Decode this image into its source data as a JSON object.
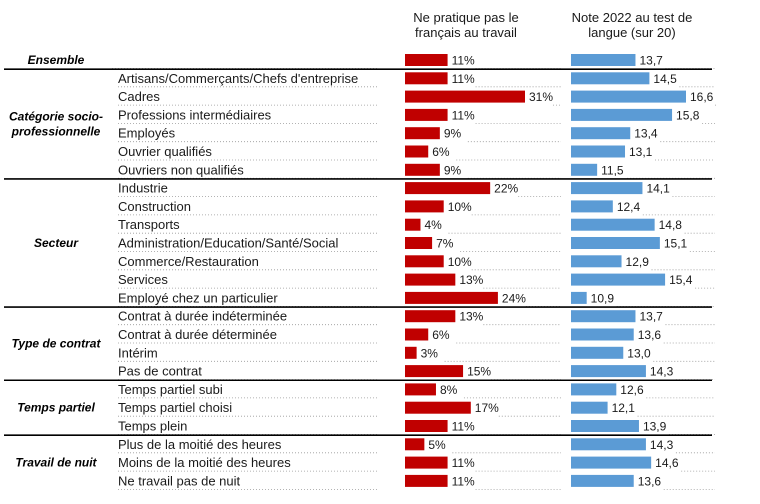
{
  "chart_data": {
    "type": "bar",
    "series": [
      {
        "name": "Ne pratique pas le français au travail",
        "unit": "%",
        "color": "#c00000",
        "max": 31
      },
      {
        "name": "Note 2022 au test de langue (sur 20)",
        "color": "#5b9bd5",
        "min": 10,
        "max": 16.6
      }
    ],
    "header_left": [
      "Ne pratique pas le",
      "français au travail"
    ],
    "header_right": [
      "Note 2022 au test de",
      "langue (sur 20)"
    ],
    "groups": [
      {
        "name": [
          "Ensemble"
        ],
        "rows": [
          {
            "label": "",
            "pct": 11,
            "pct_label": "11%",
            "score": 13.7,
            "score_label": "13,7"
          }
        ]
      },
      {
        "name": [
          "Catégorie socio-",
          "professionnelle"
        ],
        "rows": [
          {
            "label": "Artisans/Commerçants/Chefs d'entreprise",
            "pct": 11,
            "pct_label": "11%",
            "score": 14.5,
            "score_label": "14,5"
          },
          {
            "label": "Cadres",
            "pct": 31,
            "pct_label": "31%",
            "score": 16.6,
            "score_label": "16,6"
          },
          {
            "label": "Professions intermédiaires",
            "pct": 11,
            "pct_label": "11%",
            "score": 15.8,
            "score_label": "15,8"
          },
          {
            "label": "Employés",
            "pct": 9,
            "pct_label": "9%",
            "score": 13.4,
            "score_label": "13,4"
          },
          {
            "label": "Ouvrier qualifiés",
            "pct": 6,
            "pct_label": "6%",
            "score": 13.1,
            "score_label": "13,1"
          },
          {
            "label": "Ouvriers non qualifiés",
            "pct": 9,
            "pct_label": "9%",
            "score": 11.5,
            "score_label": "11,5"
          }
        ]
      },
      {
        "name": [
          "Secteur"
        ],
        "rows": [
          {
            "label": "Industrie",
            "pct": 22,
            "pct_label": "22%",
            "score": 14.1,
            "score_label": "14,1"
          },
          {
            "label": "Construction",
            "pct": 10,
            "pct_label": "10%",
            "score": 12.4,
            "score_label": "12,4"
          },
          {
            "label": "Transports",
            "pct": 4,
            "pct_label": "4%",
            "score": 14.8,
            "score_label": "14,8"
          },
          {
            "label": "Administration/Education/Santé/Social",
            "pct": 7,
            "pct_label": "7%",
            "score": 15.1,
            "score_label": "15,1"
          },
          {
            "label": "Commerce/Restauration",
            "pct": 10,
            "pct_label": "10%",
            "score": 12.9,
            "score_label": "12,9"
          },
          {
            "label": "Services",
            "pct": 13,
            "pct_label": "13%",
            "score": 15.4,
            "score_label": "15,4"
          },
          {
            "label": "Employé chez un particulier",
            "pct": 24,
            "pct_label": "24%",
            "score": 10.9,
            "score_label": "10,9"
          }
        ]
      },
      {
        "name": [
          "Type de contrat"
        ],
        "rows": [
          {
            "label": "Contrat à durée indéterminée",
            "pct": 13,
            "pct_label": "13%",
            "score": 13.7,
            "score_label": "13,7"
          },
          {
            "label": "Contrat à durée déterminée",
            "pct": 6,
            "pct_label": "6%",
            "score": 13.6,
            "score_label": "13,6"
          },
          {
            "label": "Intérim",
            "pct": 3,
            "pct_label": "3%",
            "score": 13.0,
            "score_label": "13,0"
          },
          {
            "label": "Pas de contrat",
            "pct": 15,
            "pct_label": "15%",
            "score": 14.3,
            "score_label": "14,3"
          }
        ]
      },
      {
        "name": [
          "Temps partiel"
        ],
        "rows": [
          {
            "label": "Temps partiel subi",
            "pct": 8,
            "pct_label": "8%",
            "score": 12.6,
            "score_label": "12,6"
          },
          {
            "label": "Temps partiel choisi",
            "pct": 17,
            "pct_label": "17%",
            "score": 12.1,
            "score_label": "12,1"
          },
          {
            "label": "Temps plein",
            "pct": 11,
            "pct_label": "11%",
            "score": 13.9,
            "score_label": "13,9"
          }
        ]
      },
      {
        "name": [
          "Travail de nuit"
        ],
        "rows": [
          {
            "label": "Plus de la moitié des heures",
            "pct": 5,
            "pct_label": "5%",
            "score": 14.3,
            "score_label": "14,3"
          },
          {
            "label": "Moins de la moitié des heures",
            "pct": 11,
            "pct_label": "11%",
            "score": 14.6,
            "score_label": "14,6"
          },
          {
            "label": "Ne travail pas de nuit",
            "pct": 11,
            "pct_label": "11%",
            "score": 13.6,
            "score_label": "13,6"
          }
        ]
      }
    ]
  }
}
